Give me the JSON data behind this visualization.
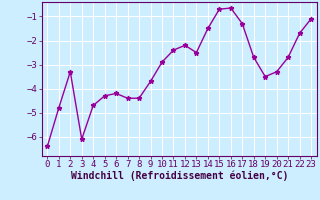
{
  "x": [
    0,
    1,
    2,
    3,
    4,
    5,
    6,
    7,
    8,
    9,
    10,
    11,
    12,
    13,
    14,
    15,
    16,
    17,
    18,
    19,
    20,
    21,
    22,
    23
  ],
  "y": [
    -6.4,
    -4.8,
    -3.3,
    -6.1,
    -4.7,
    -4.3,
    -4.2,
    -4.4,
    -4.4,
    -3.7,
    -2.9,
    -2.4,
    -2.2,
    -2.5,
    -1.5,
    -0.7,
    -0.65,
    -1.3,
    -2.7,
    -3.5,
    -3.3,
    -2.7,
    -1.7,
    -1.1
  ],
  "line_color": "#990099",
  "marker": "*",
  "marker_size": 3.5,
  "bg_color": "#cceeff",
  "grid_color": "#ffffff",
  "xlabel": "Windchill (Refroidissement éolien,°C)",
  "xlabel_fontsize": 7,
  "tick_fontsize": 6.5,
  "ylim": [
    -6.8,
    -0.4
  ],
  "xlim": [
    -0.5,
    23.5
  ],
  "yticks": [
    -6,
    -5,
    -4,
    -3,
    -2,
    -1
  ],
  "xticks": [
    0,
    1,
    2,
    3,
    4,
    5,
    6,
    7,
    8,
    9,
    10,
    11,
    12,
    13,
    14,
    15,
    16,
    17,
    18,
    19,
    20,
    21,
    22,
    23
  ]
}
